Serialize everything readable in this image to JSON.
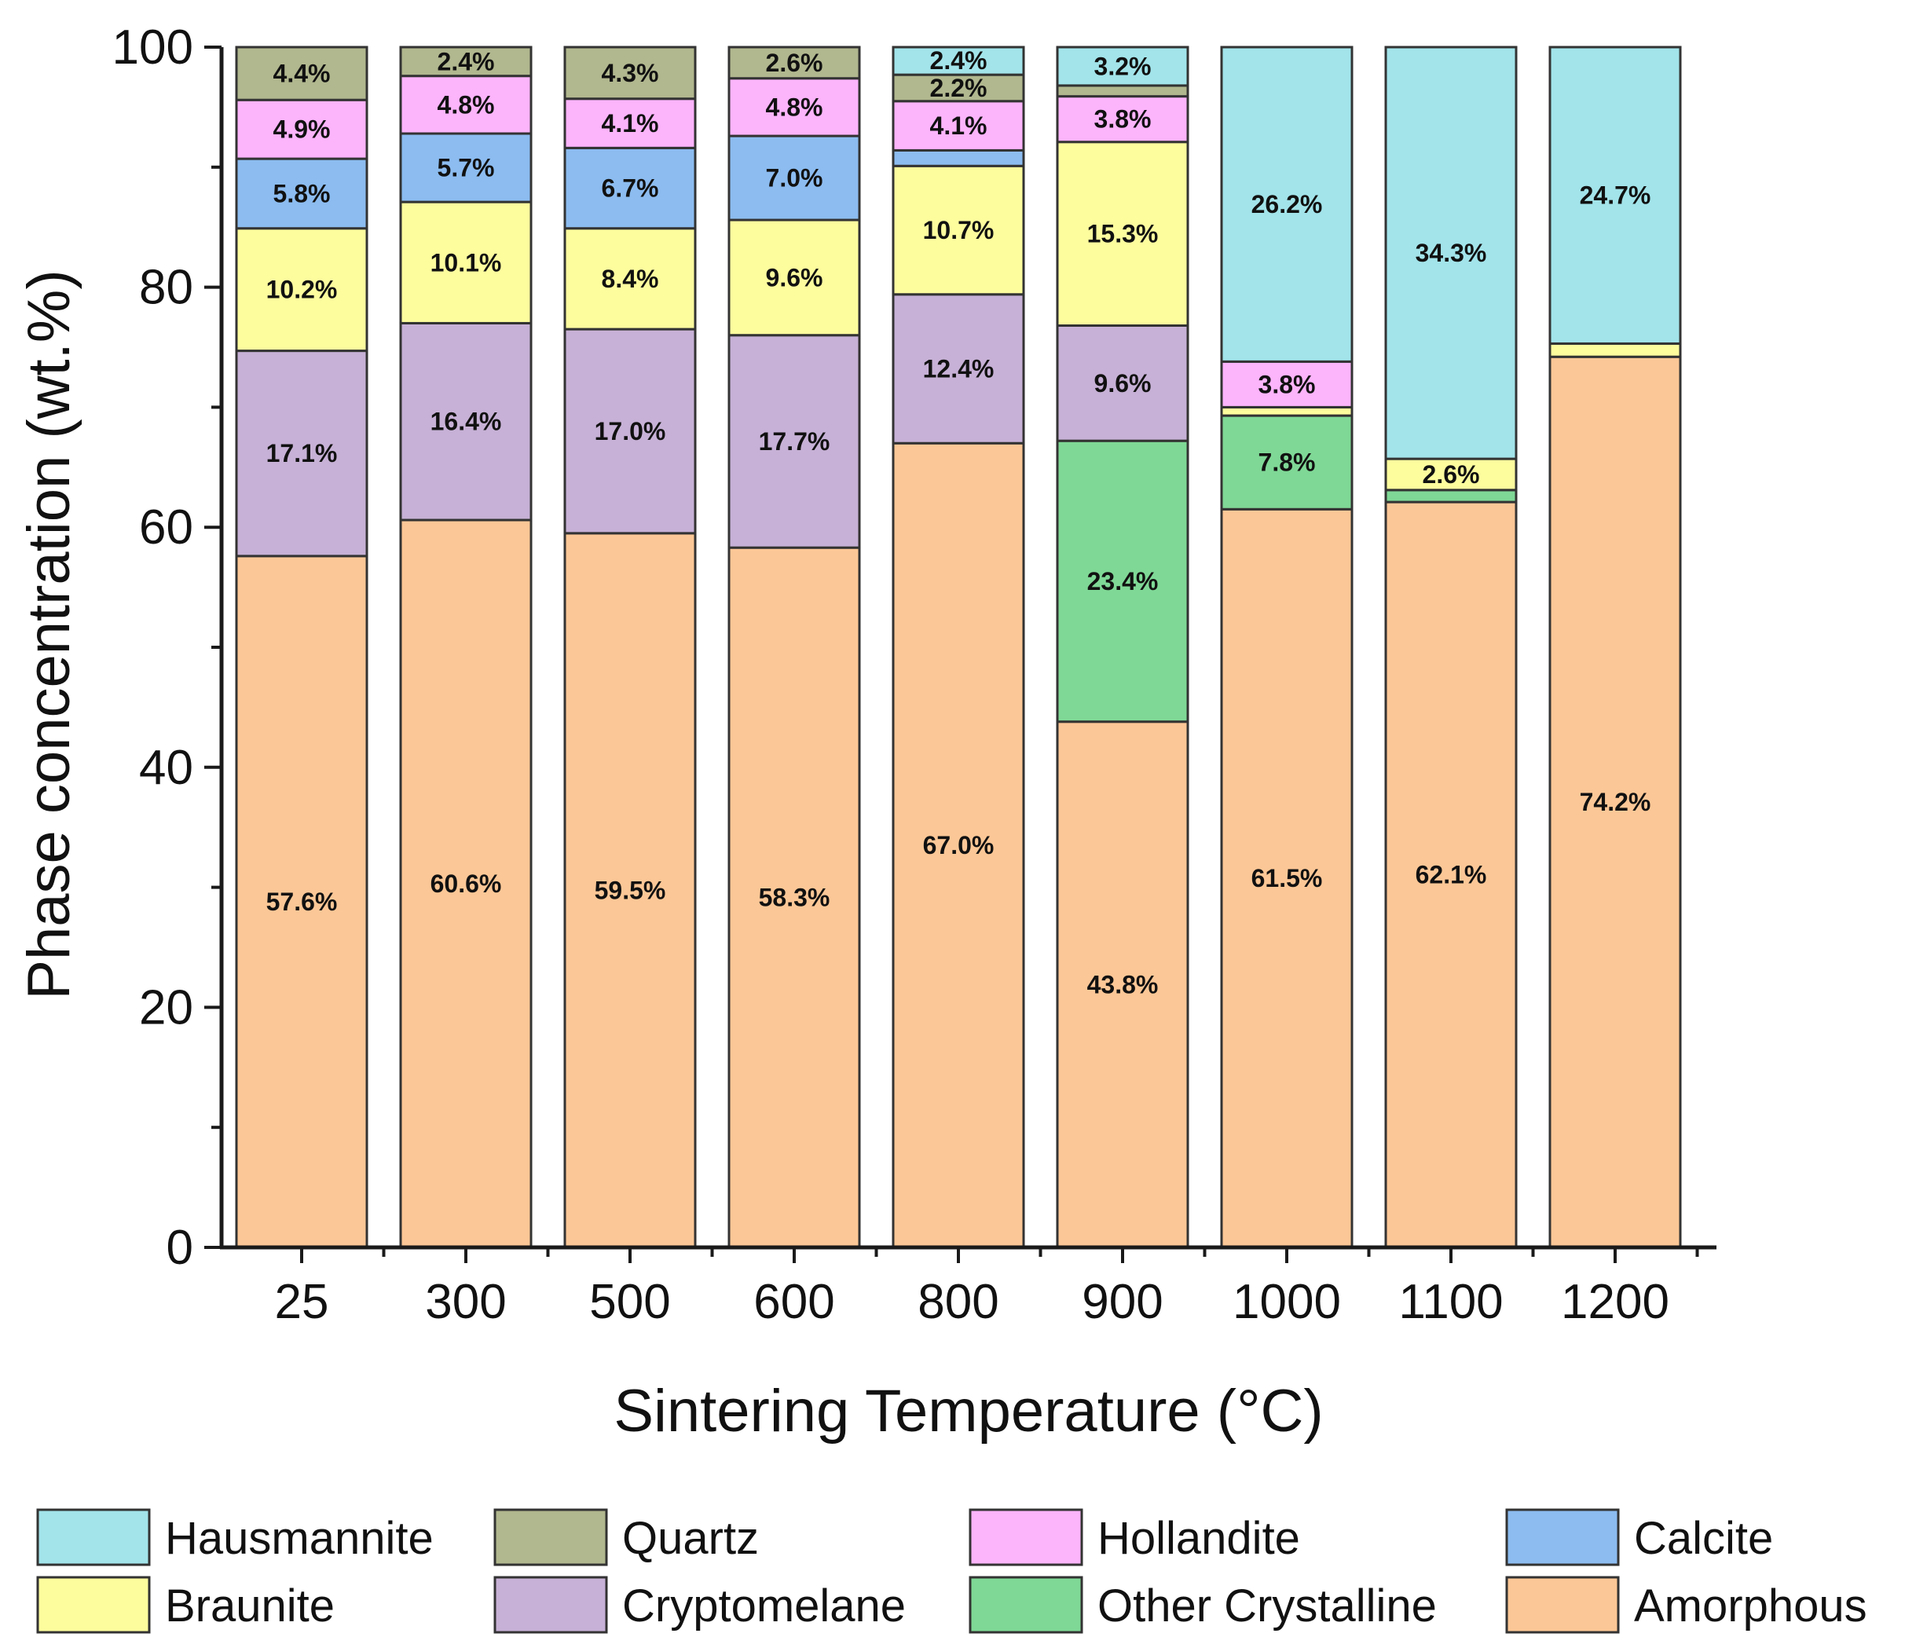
{
  "chart_data": {
    "type": "bar",
    "stacked": true,
    "title": "",
    "xlabel": "Sintering Temperature (°C)",
    "ylabel": "Phase concentration (wt.%)",
    "ylim": [
      0,
      100
    ],
    "yticks": [
      0,
      20,
      40,
      60,
      80,
      100
    ],
    "categories": [
      "25",
      "300",
      "500",
      "600",
      "800",
      "900",
      "1000",
      "1100",
      "1200"
    ],
    "legend_position": "bottom",
    "series": [
      {
        "name": "Amorphous",
        "color": "#fcc796",
        "values": [
          57.6,
          60.6,
          59.5,
          58.3,
          67.0,
          43.8,
          61.5,
          62.1,
          74.2
        ],
        "labels": [
          "57.6%",
          "60.6%",
          "59.5%",
          "58.3%",
          "67.0%",
          "43.8%",
          "61.5%",
          "62.1%",
          "74.2%"
        ]
      },
      {
        "name": "Other Crystalline",
        "color": "#7fd896",
        "values": [
          0,
          0,
          0,
          0,
          0,
          23.4,
          7.8,
          1.0,
          0
        ],
        "labels": [
          "",
          "",
          "",
          "",
          "",
          "23.4%",
          "7.8%",
          "",
          ""
        ]
      },
      {
        "name": "Cryptomelane",
        "color": "#c7b1d6",
        "values": [
          17.1,
          16.4,
          17.0,
          17.7,
          12.4,
          9.6,
          0,
          0,
          0
        ],
        "labels": [
          "17.1%",
          "16.4%",
          "17.0%",
          "17.7%",
          "12.4%",
          "9.6%",
          "",
          "",
          ""
        ]
      },
      {
        "name": "Braunite",
        "color": "#fdfd9e",
        "values": [
          10.2,
          10.1,
          8.4,
          9.6,
          10.7,
          15.3,
          0.7,
          2.6,
          1.1
        ],
        "labels": [
          "10.2%",
          "10.1%",
          "8.4%",
          "9.6%",
          "10.7%",
          "15.3%",
          "",
          "2.6%",
          ""
        ]
      },
      {
        "name": "Calcite",
        "color": "#8cbcf0",
        "values": [
          5.8,
          5.7,
          6.7,
          7.0,
          1.3,
          0,
          0,
          0,
          0
        ],
        "labels": [
          "5.8%",
          "5.7%",
          "6.7%",
          "7.0%",
          "",
          "",
          "",
          "",
          ""
        ]
      },
      {
        "name": "Hollandite",
        "color": "#fcb4fb",
        "values": [
          4.9,
          4.8,
          4.1,
          4.8,
          4.1,
          3.8,
          3.8,
          0,
          0
        ],
        "labels": [
          "4.9%",
          "4.8%",
          "4.1%",
          "4.8%",
          "4.1%",
          "3.8%",
          "3.8%",
          "",
          ""
        ]
      },
      {
        "name": "Quartz",
        "color": "#b1b78e",
        "values": [
          4.4,
          2.4,
          4.3,
          2.6,
          2.2,
          0.9,
          0,
          0,
          0
        ],
        "labels": [
          "4.4%",
          "2.4%",
          "4.3%",
          "2.6%",
          "2.2%",
          "",
          "",
          "",
          ""
        ]
      },
      {
        "name": "Hausmannite",
        "color": "#a2e4ea",
        "values": [
          0,
          0,
          0,
          0,
          2.4,
          3.2,
          26.2,
          34.3,
          24.7
        ],
        "labels": [
          "",
          "",
          "",
          "",
          "2.4%",
          "3.2%",
          "26.2%",
          "34.3%",
          "24.7%"
        ]
      }
    ],
    "legend_order": [
      "Hausmannite",
      "Quartz",
      "Hollandite",
      "Calcite",
      "Braunite",
      "Cryptomelane",
      "Other Crystalline",
      "Amorphous"
    ]
  }
}
